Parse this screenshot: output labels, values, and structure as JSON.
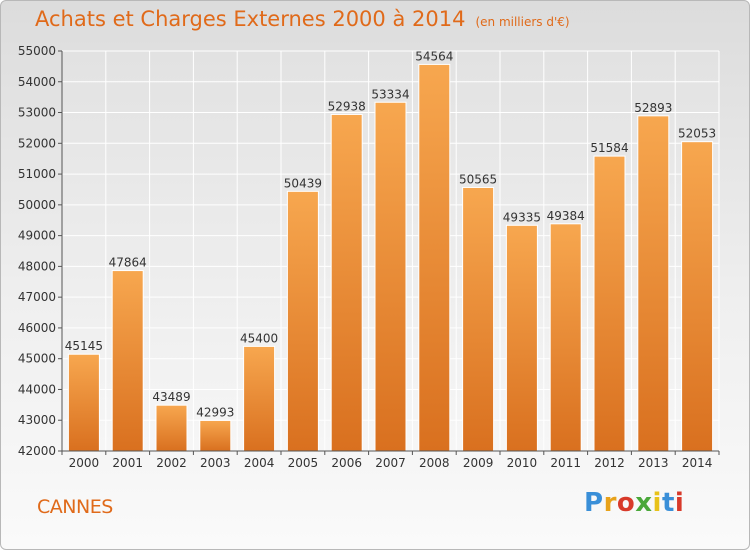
{
  "header": {
    "title": "Achats et Charges Externes 2000 à 2014",
    "unit": "(en milliers d'€)"
  },
  "footer": {
    "city": "CANNES",
    "brand": "Proxiti",
    "brand_colors": [
      "#3a8fd8",
      "#e8a21a",
      "#d83a2a",
      "#4aa83a",
      "#e8c21a",
      "#3a8fd8",
      "#d83a2a"
    ]
  },
  "colors": {
    "accent": "#e06a1a",
    "bar_top": "#f7a74f",
    "bar_bottom": "#d9701f"
  },
  "chart_data": {
    "type": "bar",
    "title": "Achats et Charges Externes 2000 à 2014",
    "subtitle": "(en milliers d'€)",
    "categories": [
      "2000",
      "2001",
      "2002",
      "2003",
      "2004",
      "2005",
      "2006",
      "2007",
      "2008",
      "2009",
      "2010",
      "2011",
      "2012",
      "2013",
      "2014"
    ],
    "values": [
      45145,
      47864,
      43489,
      42993,
      45400,
      50439,
      52938,
      53334,
      54564,
      50565,
      49335,
      49384,
      51584,
      52893,
      52053
    ],
    "ylim": [
      42000,
      55000
    ],
    "yticks": [
      42000,
      43000,
      44000,
      45000,
      46000,
      47000,
      48000,
      49000,
      50000,
      51000,
      52000,
      53000,
      54000,
      55000
    ],
    "grid": true
  }
}
